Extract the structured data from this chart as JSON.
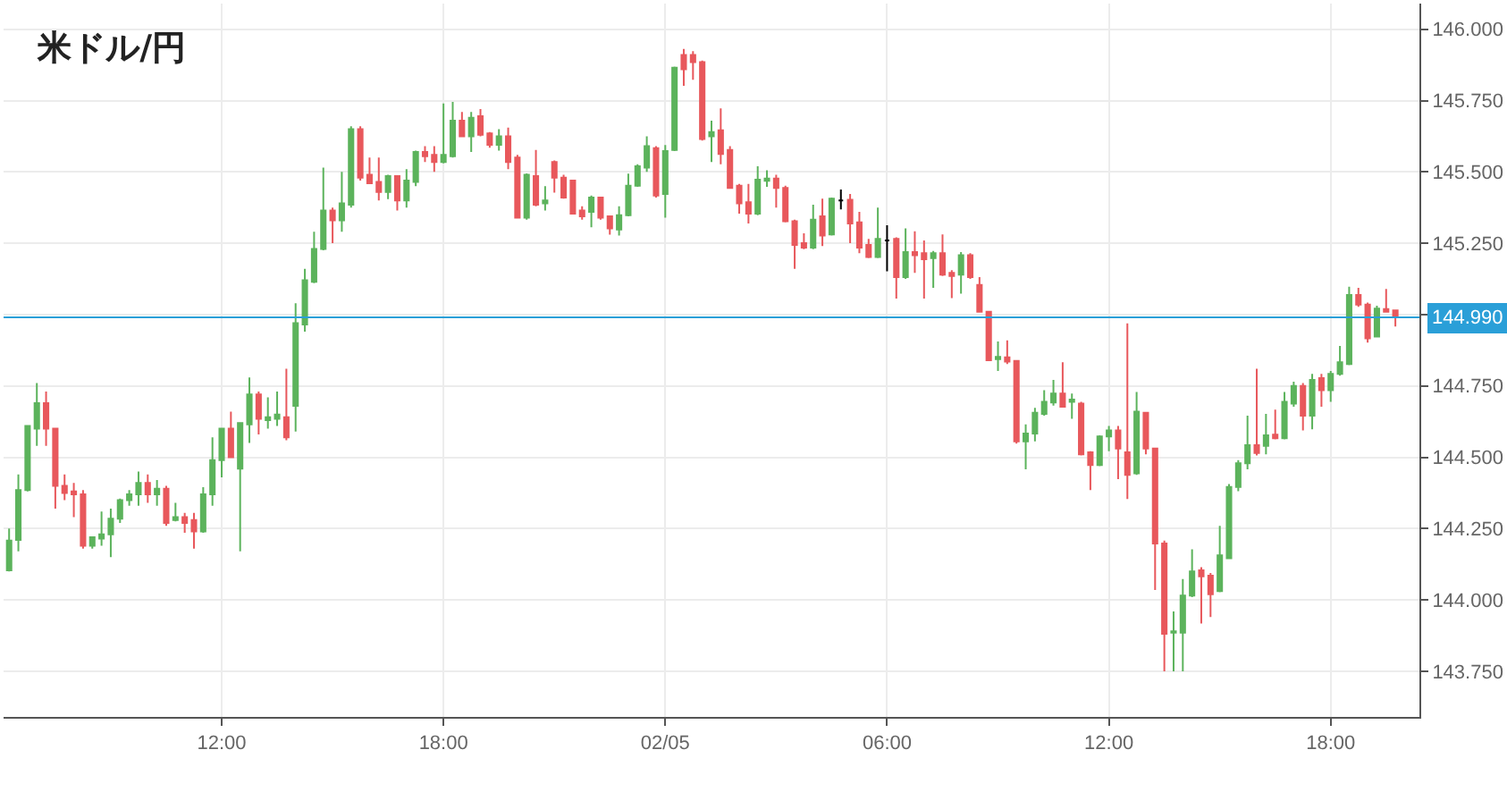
{
  "chart_data": {
    "type": "candlestick",
    "title": "米ドル/円",
    "x": [
      "--02-04T06:15",
      "--02-04T06:30",
      "--02-04T06:45",
      "--02-04T07:00",
      "--02-04T07:15",
      "--02-04T07:30",
      "--02-04T07:45",
      "--02-04T08:00",
      "--02-04T08:15",
      "--02-04T08:30",
      "--02-04T08:45",
      "--02-04T09:00",
      "--02-04T09:15",
      "--02-04T09:30",
      "--02-04T09:45",
      "--02-04T10:00",
      "--02-04T10:15",
      "--02-04T10:30",
      "--02-04T10:45",
      "--02-04T11:00",
      "--02-04T11:15",
      "--02-04T11:30",
      "--02-04T11:45",
      "--02-04T12:00",
      "--02-04T12:15",
      "--02-04T12:30",
      "--02-04T12:45",
      "--02-04T13:00",
      "--02-04T13:15",
      "--02-04T13:30",
      "--02-04T13:45",
      "--02-04T14:00",
      "--02-04T14:15",
      "--02-04T14:30",
      "--02-04T14:45",
      "--02-04T15:00",
      "--02-04T15:15",
      "--02-04T15:30",
      "--02-04T15:45",
      "--02-04T16:00",
      "--02-04T16:15",
      "--02-04T16:30",
      "--02-04T16:45",
      "--02-04T17:00",
      "--02-04T17:15",
      "--02-04T17:30",
      "--02-04T17:45",
      "--02-04T18:00",
      "--02-04T18:15",
      "--02-04T18:30",
      "--02-04T18:45",
      "--02-04T19:00",
      "--02-04T19:15",
      "--02-04T19:30",
      "--02-04T19:45",
      "--02-04T20:00",
      "--02-04T20:15",
      "--02-04T20:30",
      "--02-04T20:45",
      "--02-04T21:00",
      "--02-04T21:15",
      "--02-04T21:30",
      "--02-04T21:45",
      "--02-04T22:00",
      "--02-04T22:15",
      "--02-04T22:30",
      "--02-04T22:45",
      "--02-04T23:00",
      "--02-04T23:15",
      "--02-04T23:30",
      "--02-04T23:45",
      "--02-05T00:00",
      "--02-05T00:15",
      "--02-05T00:30",
      "--02-05T00:45",
      "--02-05T01:00",
      "--02-05T01:15",
      "--02-05T01:30",
      "--02-05T01:45",
      "--02-05T02:00",
      "--02-05T02:15",
      "--02-05T02:30",
      "--02-05T02:45",
      "--02-05T03:00",
      "--02-05T03:15",
      "--02-05T03:30",
      "--02-05T03:45",
      "--02-05T04:00",
      "--02-05T04:15",
      "--02-05T04:30",
      "--02-05T04:45",
      "--02-05T05:00",
      "--02-05T05:15",
      "--02-05T05:30",
      "--02-05T05:45",
      "--02-05T06:00",
      "--02-05T06:15",
      "--02-05T06:30",
      "--02-05T06:45",
      "--02-05T07:00",
      "--02-05T07:15",
      "--02-05T07:30",
      "--02-05T07:45",
      "--02-05T08:00",
      "--02-05T08:15",
      "--02-05T08:30",
      "--02-05T08:45",
      "--02-05T09:00",
      "--02-05T09:15",
      "--02-05T09:30",
      "--02-05T09:45",
      "--02-05T10:00",
      "--02-05T10:15",
      "--02-05T10:30",
      "--02-05T10:45",
      "--02-05T11:00",
      "--02-05T11:15",
      "--02-05T11:30",
      "--02-05T11:45",
      "--02-05T12:00",
      "--02-05T12:15",
      "--02-05T12:30",
      "--02-05T12:45",
      "--02-05T13:00",
      "--02-05T13:15",
      "--02-05T13:30",
      "--02-05T13:45",
      "--02-05T14:00",
      "--02-05T14:15",
      "--02-05T14:30",
      "--02-05T14:45",
      "--02-05T15:00",
      "--02-05T15:15",
      "--02-05T15:30",
      "--02-05T15:45",
      "--02-05T16:00",
      "--02-05T16:15",
      "--02-05T16:30",
      "--02-05T16:45",
      "--02-05T17:00",
      "--02-05T17:15",
      "--02-05T17:30",
      "--02-05T17:45",
      "--02-05T18:00",
      "--02-05T18:15",
      "--02-05T18:30",
      "--02-05T18:45",
      "--02-05T19:00",
      "--02-05T19:15",
      "--02-05T19:30",
      "--02-05T19:45"
    ],
    "ohlc": [
      [
        144.104,
        144.25,
        144.1,
        144.208
      ],
      [
        144.21,
        144.44,
        144.17,
        144.385
      ],
      [
        144.385,
        144.61,
        144.38,
        144.61
      ],
      [
        144.6,
        144.76,
        144.54,
        144.69
      ],
      [
        144.69,
        144.73,
        144.54,
        144.6
      ],
      [
        144.6,
        144.6,
        144.32,
        144.4
      ],
      [
        144.4,
        144.44,
        144.35,
        144.375
      ],
      [
        144.38,
        144.41,
        144.29,
        144.37
      ],
      [
        144.37,
        144.385,
        144.18,
        144.19
      ],
      [
        144.19,
        144.22,
        144.18,
        144.22
      ],
      [
        144.215,
        144.31,
        144.19,
        144.23
      ],
      [
        144.23,
        144.32,
        144.15,
        144.285
      ],
      [
        144.285,
        144.355,
        144.27,
        144.35
      ],
      [
        144.35,
        144.385,
        144.33,
        144.37
      ],
      [
        144.37,
        144.45,
        144.33,
        144.41
      ],
      [
        144.41,
        144.44,
        144.34,
        144.37
      ],
      [
        144.37,
        144.42,
        144.33,
        144.39
      ],
      [
        144.39,
        144.4,
        144.26,
        144.27
      ],
      [
        144.28,
        144.34,
        144.275,
        144.29
      ],
      [
        144.29,
        144.305,
        144.235,
        144.27
      ],
      [
        144.28,
        144.305,
        144.18,
        144.24
      ],
      [
        144.24,
        144.395,
        144.235,
        144.37
      ],
      [
        144.37,
        144.57,
        144.33,
        144.49
      ],
      [
        144.49,
        144.6,
        144.43,
        144.6
      ],
      [
        144.6,
        144.66,
        144.5,
        144.5
      ],
      [
        144.46,
        144.62,
        144.17,
        144.62
      ],
      [
        144.615,
        144.78,
        144.55,
        144.72
      ],
      [
        144.72,
        144.73,
        144.58,
        144.635
      ],
      [
        144.63,
        144.71,
        144.6,
        144.64
      ],
      [
        144.635,
        144.73,
        144.61,
        144.65
      ],
      [
        144.64,
        144.81,
        144.56,
        144.57
      ],
      [
        144.68,
        145.04,
        144.59,
        144.97
      ],
      [
        144.965,
        145.16,
        144.94,
        145.12
      ],
      [
        145.115,
        145.29,
        145.11,
        145.23
      ],
      [
        145.23,
        145.515,
        145.225,
        145.365
      ],
      [
        145.365,
        145.375,
        145.25,
        145.33
      ],
      [
        145.33,
        145.5,
        145.29,
        145.39
      ],
      [
        145.385,
        145.66,
        145.375,
        145.65
      ],
      [
        145.65,
        145.66,
        145.47,
        145.48
      ],
      [
        145.49,
        145.55,
        145.46,
        145.46
      ],
      [
        145.465,
        145.55,
        145.4,
        145.43
      ],
      [
        145.43,
        145.49,
        145.405,
        145.485
      ],
      [
        145.485,
        145.485,
        145.365,
        145.4
      ],
      [
        145.4,
        145.51,
        145.375,
        145.47
      ],
      [
        145.465,
        145.575,
        145.45,
        145.57
      ],
      [
        145.57,
        145.59,
        145.535,
        145.555
      ],
      [
        145.56,
        145.59,
        145.5,
        145.535
      ],
      [
        145.535,
        145.74,
        145.53,
        145.56
      ],
      [
        145.555,
        145.745,
        145.55,
        145.68
      ],
      [
        145.68,
        145.71,
        145.625,
        145.625
      ],
      [
        145.625,
        145.71,
        145.57,
        145.69
      ],
      [
        145.695,
        145.72,
        145.625,
        145.63
      ],
      [
        145.635,
        145.64,
        145.585,
        145.595
      ],
      [
        145.595,
        145.65,
        145.575,
        145.625
      ],
      [
        145.625,
        145.655,
        145.51,
        145.535
      ],
      [
        145.55,
        145.56,
        145.34,
        145.34
      ],
      [
        145.34,
        145.495,
        145.333,
        145.49
      ],
      [
        145.485,
        145.577,
        145.38,
        145.385
      ],
      [
        145.39,
        145.45,
        145.365,
        145.4
      ],
      [
        145.535,
        145.54,
        145.427,
        145.48
      ],
      [
        145.48,
        145.49,
        145.406,
        145.41
      ],
      [
        145.47,
        145.47,
        145.354,
        145.354
      ],
      [
        145.365,
        145.38,
        145.333,
        145.344
      ],
      [
        145.36,
        145.417,
        145.306,
        145.41
      ],
      [
        145.41,
        145.41,
        145.333,
        145.34
      ],
      [
        145.344,
        145.344,
        145.28,
        145.302
      ],
      [
        145.298,
        145.38,
        145.277,
        145.348
      ],
      [
        145.348,
        145.494,
        145.344,
        145.452
      ],
      [
        145.452,
        145.527,
        145.448,
        145.52
      ],
      [
        145.515,
        145.625,
        145.5,
        145.59
      ],
      [
        145.583,
        145.59,
        145.41,
        145.417
      ],
      [
        145.423,
        145.594,
        145.34,
        145.573
      ],
      [
        145.577,
        145.869,
        145.573,
        145.865
      ],
      [
        145.91,
        145.931,
        145.802,
        145.86
      ],
      [
        145.91,
        145.923,
        145.823,
        145.885
      ],
      [
        145.885,
        145.89,
        145.61,
        145.615
      ],
      [
        145.625,
        145.68,
        145.535,
        145.64
      ],
      [
        145.646,
        145.723,
        145.527,
        145.563
      ],
      [
        145.577,
        145.59,
        145.444,
        145.444
      ],
      [
        145.452,
        145.458,
        145.354,
        145.39
      ],
      [
        145.394,
        145.458,
        145.319,
        145.354
      ],
      [
        145.354,
        145.52,
        145.348,
        145.473
      ],
      [
        145.469,
        145.506,
        145.448,
        145.477
      ],
      [
        145.477,
        145.49,
        145.375,
        145.444
      ],
      [
        145.444,
        145.452,
        145.323,
        145.327
      ],
      [
        145.327,
        145.333,
        145.16,
        145.244
      ],
      [
        145.25,
        145.285,
        145.229,
        145.235
      ],
      [
        145.235,
        145.385,
        145.229,
        145.333
      ],
      [
        145.344,
        145.406,
        145.24,
        145.277
      ],
      [
        145.281,
        145.41,
        145.277,
        145.406
      ],
      [
        145.4,
        145.438,
        145.369,
        145.4
      ],
      [
        145.402,
        145.423,
        145.25,
        145.319
      ],
      [
        145.323,
        145.36,
        145.215,
        145.235
      ],
      [
        145.244,
        145.265,
        145.198,
        145.202
      ],
      [
        145.202,
        145.375,
        145.198,
        145.265
      ],
      [
        145.26,
        145.313,
        145.152,
        145.26
      ],
      [
        145.265,
        145.271,
        145.056,
        145.131
      ],
      [
        145.131,
        145.302,
        145.125,
        145.219
      ],
      [
        145.219,
        145.292,
        145.146,
        145.208
      ],
      [
        145.215,
        145.26,
        145.056,
        145.194
      ],
      [
        145.198,
        145.223,
        145.094,
        145.215
      ],
      [
        145.215,
        145.281,
        145.135,
        145.14
      ],
      [
        145.146,
        145.156,
        145.058,
        145.135
      ],
      [
        145.14,
        145.219,
        145.073,
        145.208
      ],
      [
        145.208,
        145.215,
        145.125,
        145.131
      ],
      [
        145.104,
        145.131,
        145.01,
        145.01
      ],
      [
        145.01,
        145.01,
        144.84,
        144.84
      ],
      [
        144.844,
        144.906,
        144.802,
        144.852
      ],
      [
        144.85,
        144.91,
        144.827,
        144.835
      ],
      [
        144.838,
        144.838,
        144.548,
        144.556
      ],
      [
        144.556,
        144.615,
        144.458,
        144.583
      ],
      [
        144.583,
        144.673,
        144.556,
        144.656
      ],
      [
        144.652,
        144.735,
        144.646,
        144.694
      ],
      [
        144.692,
        144.771,
        144.681,
        144.723
      ],
      [
        144.723,
        144.833,
        144.677,
        144.677
      ],
      [
        144.694,
        144.723,
        144.635,
        144.702
      ],
      [
        144.688,
        144.694,
        144.506,
        144.51
      ],
      [
        144.517,
        144.521,
        144.385,
        144.473
      ],
      [
        144.473,
        144.577,
        144.469,
        144.573
      ],
      [
        144.573,
        144.61,
        144.521,
        144.594
      ],
      [
        144.594,
        144.61,
        144.423,
        144.531
      ],
      [
        144.517,
        144.969,
        144.354,
        144.438
      ],
      [
        144.444,
        144.729,
        144.438,
        144.66
      ],
      [
        144.656,
        144.656,
        144.51,
        144.531
      ],
      [
        144.531,
        144.531,
        144.035,
        144.198
      ],
      [
        144.198,
        144.208,
        143.75,
        143.881
      ],
      [
        143.885,
        143.96,
        143.75,
        143.89
      ],
      [
        143.885,
        144.073,
        143.75,
        144.015
      ],
      [
        144.015,
        144.177,
        144.01,
        144.1
      ],
      [
        144.104,
        144.115,
        143.917,
        144.083
      ],
      [
        144.085,
        144.094,
        143.94,
        144.02
      ],
      [
        144.031,
        144.26,
        144.027,
        144.156
      ],
      [
        144.146,
        144.406,
        144.146,
        144.396
      ],
      [
        144.396,
        144.49,
        144.381,
        144.479
      ],
      [
        144.479,
        144.646,
        144.458,
        144.542
      ],
      [
        144.542,
        144.81,
        144.506,
        144.515
      ],
      [
        144.54,
        144.652,
        144.51,
        144.577
      ],
      [
        144.579,
        144.667,
        144.563,
        144.567
      ],
      [
        144.567,
        144.729,
        144.563,
        144.694
      ],
      [
        144.688,
        144.765,
        144.677,
        144.75
      ],
      [
        144.75,
        144.76,
        144.594,
        144.646
      ],
      [
        144.646,
        144.792,
        144.598,
        144.771
      ],
      [
        144.777,
        144.792,
        144.677,
        144.735
      ],
      [
        144.735,
        144.802,
        144.694,
        144.792
      ],
      [
        144.792,
        144.89,
        144.786,
        144.833
      ],
      [
        144.827,
        145.098,
        144.823,
        145.069
      ],
      [
        145.069,
        145.094,
        145.027,
        145.035
      ],
      [
        145.035,
        145.042,
        144.902,
        144.917
      ],
      [
        144.923,
        145.031,
        144.923,
        145.021
      ],
      [
        145.019,
        145.09,
        145.01,
        145.01
      ],
      [
        145.015,
        145.015,
        144.958,
        144.99
      ]
    ],
    "colors": [
      "#5cb35c",
      "#5cb35c",
      "#5cb35c",
      "#5cb35c",
      "#e8585c",
      "#e8585c",
      "#e8585c",
      "#e8585c",
      "#e8585c",
      "#5cb35c",
      "#5cb35c",
      "#5cb35c",
      "#5cb35c",
      "#5cb35c",
      "#5cb35c",
      "#e8585c",
      "#5cb35c",
      "#e8585c",
      "#5cb35c",
      "#e8585c",
      "#e8585c",
      "#5cb35c",
      "#5cb35c",
      "#5cb35c",
      "#e8585c",
      "#5cb35c",
      "#5cb35c",
      "#e8585c",
      "#5cb35c",
      "#5cb35c",
      "#e8585c",
      "#5cb35c",
      "#5cb35c",
      "#5cb35c",
      "#5cb35c",
      "#e8585c",
      "#5cb35c",
      "#5cb35c",
      "#e8585c",
      "#e8585c",
      "#e8585c",
      "#5cb35c",
      "#e8585c",
      "#5cb35c",
      "#5cb35c",
      "#e8585c",
      "#e8585c",
      "#5cb35c",
      "#5cb35c",
      "#e8585c",
      "#5cb35c",
      "#e8585c",
      "#e8585c",
      "#5cb35c",
      "#e8585c",
      "#e8585c",
      "#5cb35c",
      "#e8585c",
      "#5cb35c",
      "#e8585c",
      "#e8585c",
      "#e8585c",
      "#e8585c",
      "#5cb35c",
      "#e8585c",
      "#e8585c",
      "#5cb35c",
      "#5cb35c",
      "#5cb35c",
      "#5cb35c",
      "#e8585c",
      "#5cb35c",
      "#5cb35c",
      "#e8585c",
      "#e8585c",
      "#e8585c",
      "#5cb35c",
      "#e8585c",
      "#e8585c",
      "#e8585c",
      "#e8585c",
      "#5cb35c",
      "#5cb35c",
      "#e8585c",
      "#e8585c",
      "#e8585c",
      "#e8585c",
      "#5cb35c",
      "#e8585c",
      "#5cb35c",
      "#000000",
      "#e8585c",
      "#e8585c",
      "#e8585c",
      "#5cb35c",
      "#000000",
      "#e8585c",
      "#5cb35c",
      "#e8585c",
      "#e8585c",
      "#5cb35c",
      "#e8585c",
      "#e8585c",
      "#5cb35c",
      "#e8585c",
      "#e8585c",
      "#e8585c",
      "#5cb35c",
      "#e8585c",
      "#e8585c",
      "#5cb35c",
      "#5cb35c",
      "#5cb35c",
      "#5cb35c",
      "#e8585c",
      "#5cb35c",
      "#e8585c",
      "#e8585c",
      "#5cb35c",
      "#5cb35c",
      "#e8585c",
      "#e8585c",
      "#5cb35c",
      "#e8585c",
      "#e8585c",
      "#e8585c",
      "#5cb35c",
      "#5cb35c",
      "#5cb35c",
      "#e8585c",
      "#e8585c",
      "#5cb35c",
      "#5cb35c",
      "#5cb35c",
      "#5cb35c",
      "#e8585c",
      "#5cb35c",
      "#e8585c",
      "#5cb35c",
      "#5cb35c",
      "#e8585c",
      "#5cb35c",
      "#e8585c",
      "#5cb35c",
      "#5cb35c",
      "#5cb35c",
      "#e8585c",
      "#e8585c",
      "#5cb35c",
      "#e8585c",
      "#e8585c"
    ],
    "xlim": [
      "--02-04T06:06",
      "--02-05T20:24"
    ],
    "xticks": [
      {
        "value": "--02-04T12:00",
        "label": "12:00"
      },
      {
        "value": "--02-04T18:00",
        "label": "18:00"
      },
      {
        "value": "--02-05T00:00",
        "label": "02/05"
      },
      {
        "value": "--02-05T06:00",
        "label": "06:00"
      },
      {
        "value": "--02-05T12:00",
        "label": "12:00"
      },
      {
        "value": "--02-05T18:00",
        "label": "18:00"
      }
    ],
    "ylim": [
      143.59,
      146.09
    ],
    "yticks": [
      {
        "value": 143.75,
        "label": "143.750"
      },
      {
        "value": 144.0,
        "label": "144.000"
      },
      {
        "value": 144.25,
        "label": "144.250"
      },
      {
        "value": 144.5,
        "label": "144.500"
      },
      {
        "value": 144.75,
        "label": "144.750"
      },
      {
        "value": 145.0,
        "label": null
      },
      {
        "value": 145.25,
        "label": "145.250"
      },
      {
        "value": 145.5,
        "label": "145.500"
      },
      {
        "value": 145.75,
        "label": "145.750"
      },
      {
        "value": 146.0,
        "label": "146.000"
      }
    ],
    "ref_lines": [
      {
        "axis": "y",
        "value": 144.99,
        "label": "144.990",
        "color": "#2a9fd8"
      }
    ],
    "grid": true
  }
}
